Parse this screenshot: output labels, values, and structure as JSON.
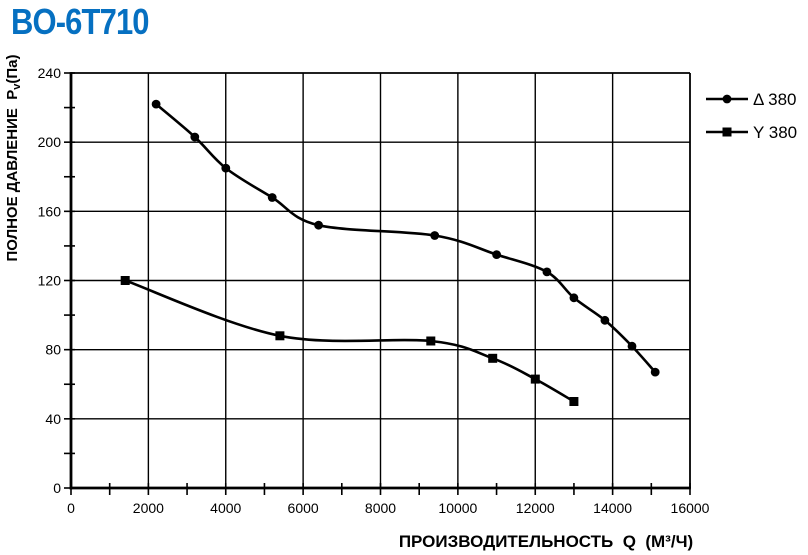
{
  "title": "BO-6T710",
  "title_color": "#0670C1",
  "chart_data": {
    "type": "line",
    "title": "BO-6T710",
    "xlabel": "ПРОИЗВОДИТЕЛЬНОСТЬ Q (М³/Ч)",
    "ylabel": "ПОЛНОЕ ДАВЛЕНИЕ Pv(Па)",
    "xlabel_parts": {
      "main": "ПРОИЗВОДИТЕЛЬНОСТЬ",
      "symbol": "Q",
      "unit": "(М³/Ч)"
    },
    "ylabel_parts": {
      "main": "ПОЛНОЕ ДАВЛЕНИЕ",
      "symbol": "P",
      "symbol_sub": "v",
      "unit": "(Па)"
    },
    "xlim": [
      0,
      16000
    ],
    "ylim": [
      0,
      240
    ],
    "x_ticks": [
      0,
      2000,
      4000,
      6000,
      8000,
      10000,
      12000,
      14000,
      16000
    ],
    "y_ticks": [
      0,
      40,
      80,
      120,
      160,
      200,
      240
    ],
    "x_minor_step": 1000,
    "y_minor_step": 20,
    "grid": true,
    "line_color": "#000000",
    "legend_position": "right-top-outside",
    "series": [
      {
        "name": "Δ 380",
        "marker": "circle",
        "points": [
          [
            2200,
            222
          ],
          [
            3200,
            203
          ],
          [
            4000,
            185
          ],
          [
            5200,
            168
          ],
          [
            6400,
            152
          ],
          [
            9400,
            146
          ],
          [
            11000,
            135
          ],
          [
            12300,
            125
          ],
          [
            13000,
            110
          ],
          [
            13800,
            97
          ],
          [
            14500,
            82
          ],
          [
            15100,
            67
          ]
        ]
      },
      {
        "name": "Y 380",
        "marker": "square",
        "points": [
          [
            1400,
            120
          ],
          [
            5400,
            88
          ],
          [
            9300,
            85
          ],
          [
            10900,
            75
          ],
          [
            12000,
            63
          ],
          [
            13000,
            50
          ]
        ]
      }
    ]
  }
}
